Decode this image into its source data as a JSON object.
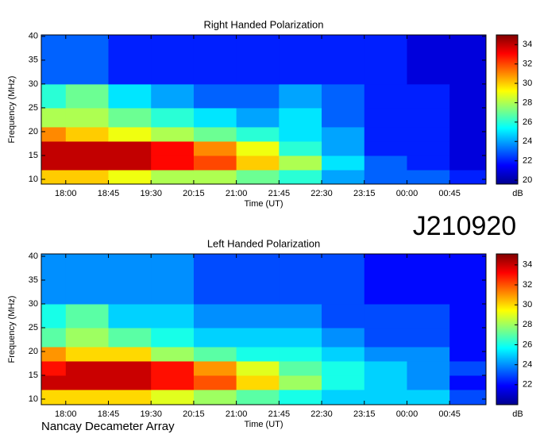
{
  "page": {
    "id": "J210920",
    "footer": "Nancay Decameter Array"
  },
  "chart_data": [
    {
      "type": "heatmap",
      "title": "Right Handed Polarization",
      "x_label": "Time (UT)",
      "y_label": "Frequency (MHz)",
      "colorbar_label": "dB",
      "xlim": [
        17.57,
        25.39
      ],
      "xticks": [
        {
          "value": 18,
          "label": "18:00"
        },
        {
          "value": 18.75,
          "label": "18:45"
        },
        {
          "value": 19.5,
          "label": "19:30"
        },
        {
          "value": 20.25,
          "label": "20:15"
        },
        {
          "value": 21,
          "label": "21:00"
        },
        {
          "value": 21.75,
          "label": "21:45"
        },
        {
          "value": 22.5,
          "label": "22:30"
        },
        {
          "value": 23.25,
          "label": "23:15"
        },
        {
          "value": 24,
          "label": "00:00"
        },
        {
          "value": 24.75,
          "label": "00:45"
        }
      ],
      "ylim": [
        9,
        40.3
      ],
      "yticks": [
        10,
        15,
        20,
        25,
        30,
        35,
        40
      ],
      "clim": [
        19.6,
        35
      ],
      "cticks": [
        20,
        22,
        24,
        26,
        28,
        30,
        32,
        34
      ],
      "x_edges": [
        17.57,
        18,
        18.75,
        19.5,
        20.25,
        21,
        21.75,
        22.5,
        23.25,
        24,
        24.75,
        25.39
      ],
      "y_edges": [
        9,
        12,
        15,
        18,
        21,
        25,
        30,
        40.3
      ],
      "z": [
        [
          30,
          30,
          29,
          28,
          28,
          27,
          26,
          24,
          23,
          23,
          22
        ],
        [
          34,
          34,
          34,
          33,
          32,
          30,
          28,
          25,
          23,
          22,
          21
        ],
        [
          34,
          34,
          34,
          33,
          31,
          29,
          26,
          24,
          22,
          22,
          21
        ],
        [
          31,
          30,
          29,
          28,
          27,
          26,
          25,
          24,
          22,
          22,
          21
        ],
        [
          28,
          28,
          27,
          26,
          25,
          24,
          25,
          23,
          22,
          22,
          21
        ],
        [
          26,
          27,
          25,
          24,
          23,
          23,
          24,
          23,
          22,
          22,
          21
        ],
        [
          23,
          23,
          22,
          22,
          22,
          22,
          22,
          22,
          22,
          21,
          21
        ]
      ]
    },
    {
      "type": "heatmap",
      "title": "Left Handed Polarization",
      "x_label": "Time (UT)",
      "y_label": "Frequency (MHz)",
      "colorbar_label": "dB",
      "xlim": [
        17.57,
        25.39
      ],
      "xticks": [
        {
          "value": 18,
          "label": "18:00"
        },
        {
          "value": 18.75,
          "label": "18:45"
        },
        {
          "value": 19.5,
          "label": "19:30"
        },
        {
          "value": 20.25,
          "label": "20:15"
        },
        {
          "value": 21,
          "label": "21:00"
        },
        {
          "value": 21.75,
          "label": "21:45"
        },
        {
          "value": 22.5,
          "label": "22:30"
        },
        {
          "value": 23.25,
          "label": "23:15"
        },
        {
          "value": 24,
          "label": "00:00"
        },
        {
          "value": 24.75,
          "label": "00:45"
        }
      ],
      "ylim": [
        8.83,
        40.5
      ],
      "yticks": [
        10,
        15,
        20,
        25,
        30,
        35,
        40
      ],
      "clim": [
        20,
        35.1
      ],
      "cticks": [
        22,
        24,
        26,
        28,
        30,
        32,
        34
      ],
      "x_edges": [
        17.57,
        18,
        18.75,
        19.5,
        20.25,
        21,
        21.75,
        22.5,
        23.25,
        24,
        24.75,
        25.39
      ],
      "y_edges": [
        8.83,
        12,
        15,
        18,
        21,
        25,
        30,
        40.5
      ],
      "z": [
        [
          30,
          30,
          30,
          29,
          28,
          27,
          26,
          25,
          25,
          25,
          23
        ],
        [
          34,
          34,
          34,
          33,
          32,
          30,
          28,
          26,
          25,
          24,
          22
        ],
        [
          33,
          34,
          34,
          33,
          31,
          29,
          27,
          26,
          25,
          24,
          23
        ],
        [
          31,
          30,
          30,
          28,
          27,
          26,
          26,
          25,
          24,
          24,
          22
        ],
        [
          27,
          28,
          27,
          26,
          25,
          25,
          25,
          24,
          23,
          23,
          22
        ],
        [
          26,
          27,
          25,
          25,
          24,
          24,
          24,
          23,
          23,
          23,
          22
        ],
        [
          24,
          24,
          24,
          24,
          23,
          23,
          23,
          23,
          22,
          22,
          22
        ]
      ]
    }
  ]
}
